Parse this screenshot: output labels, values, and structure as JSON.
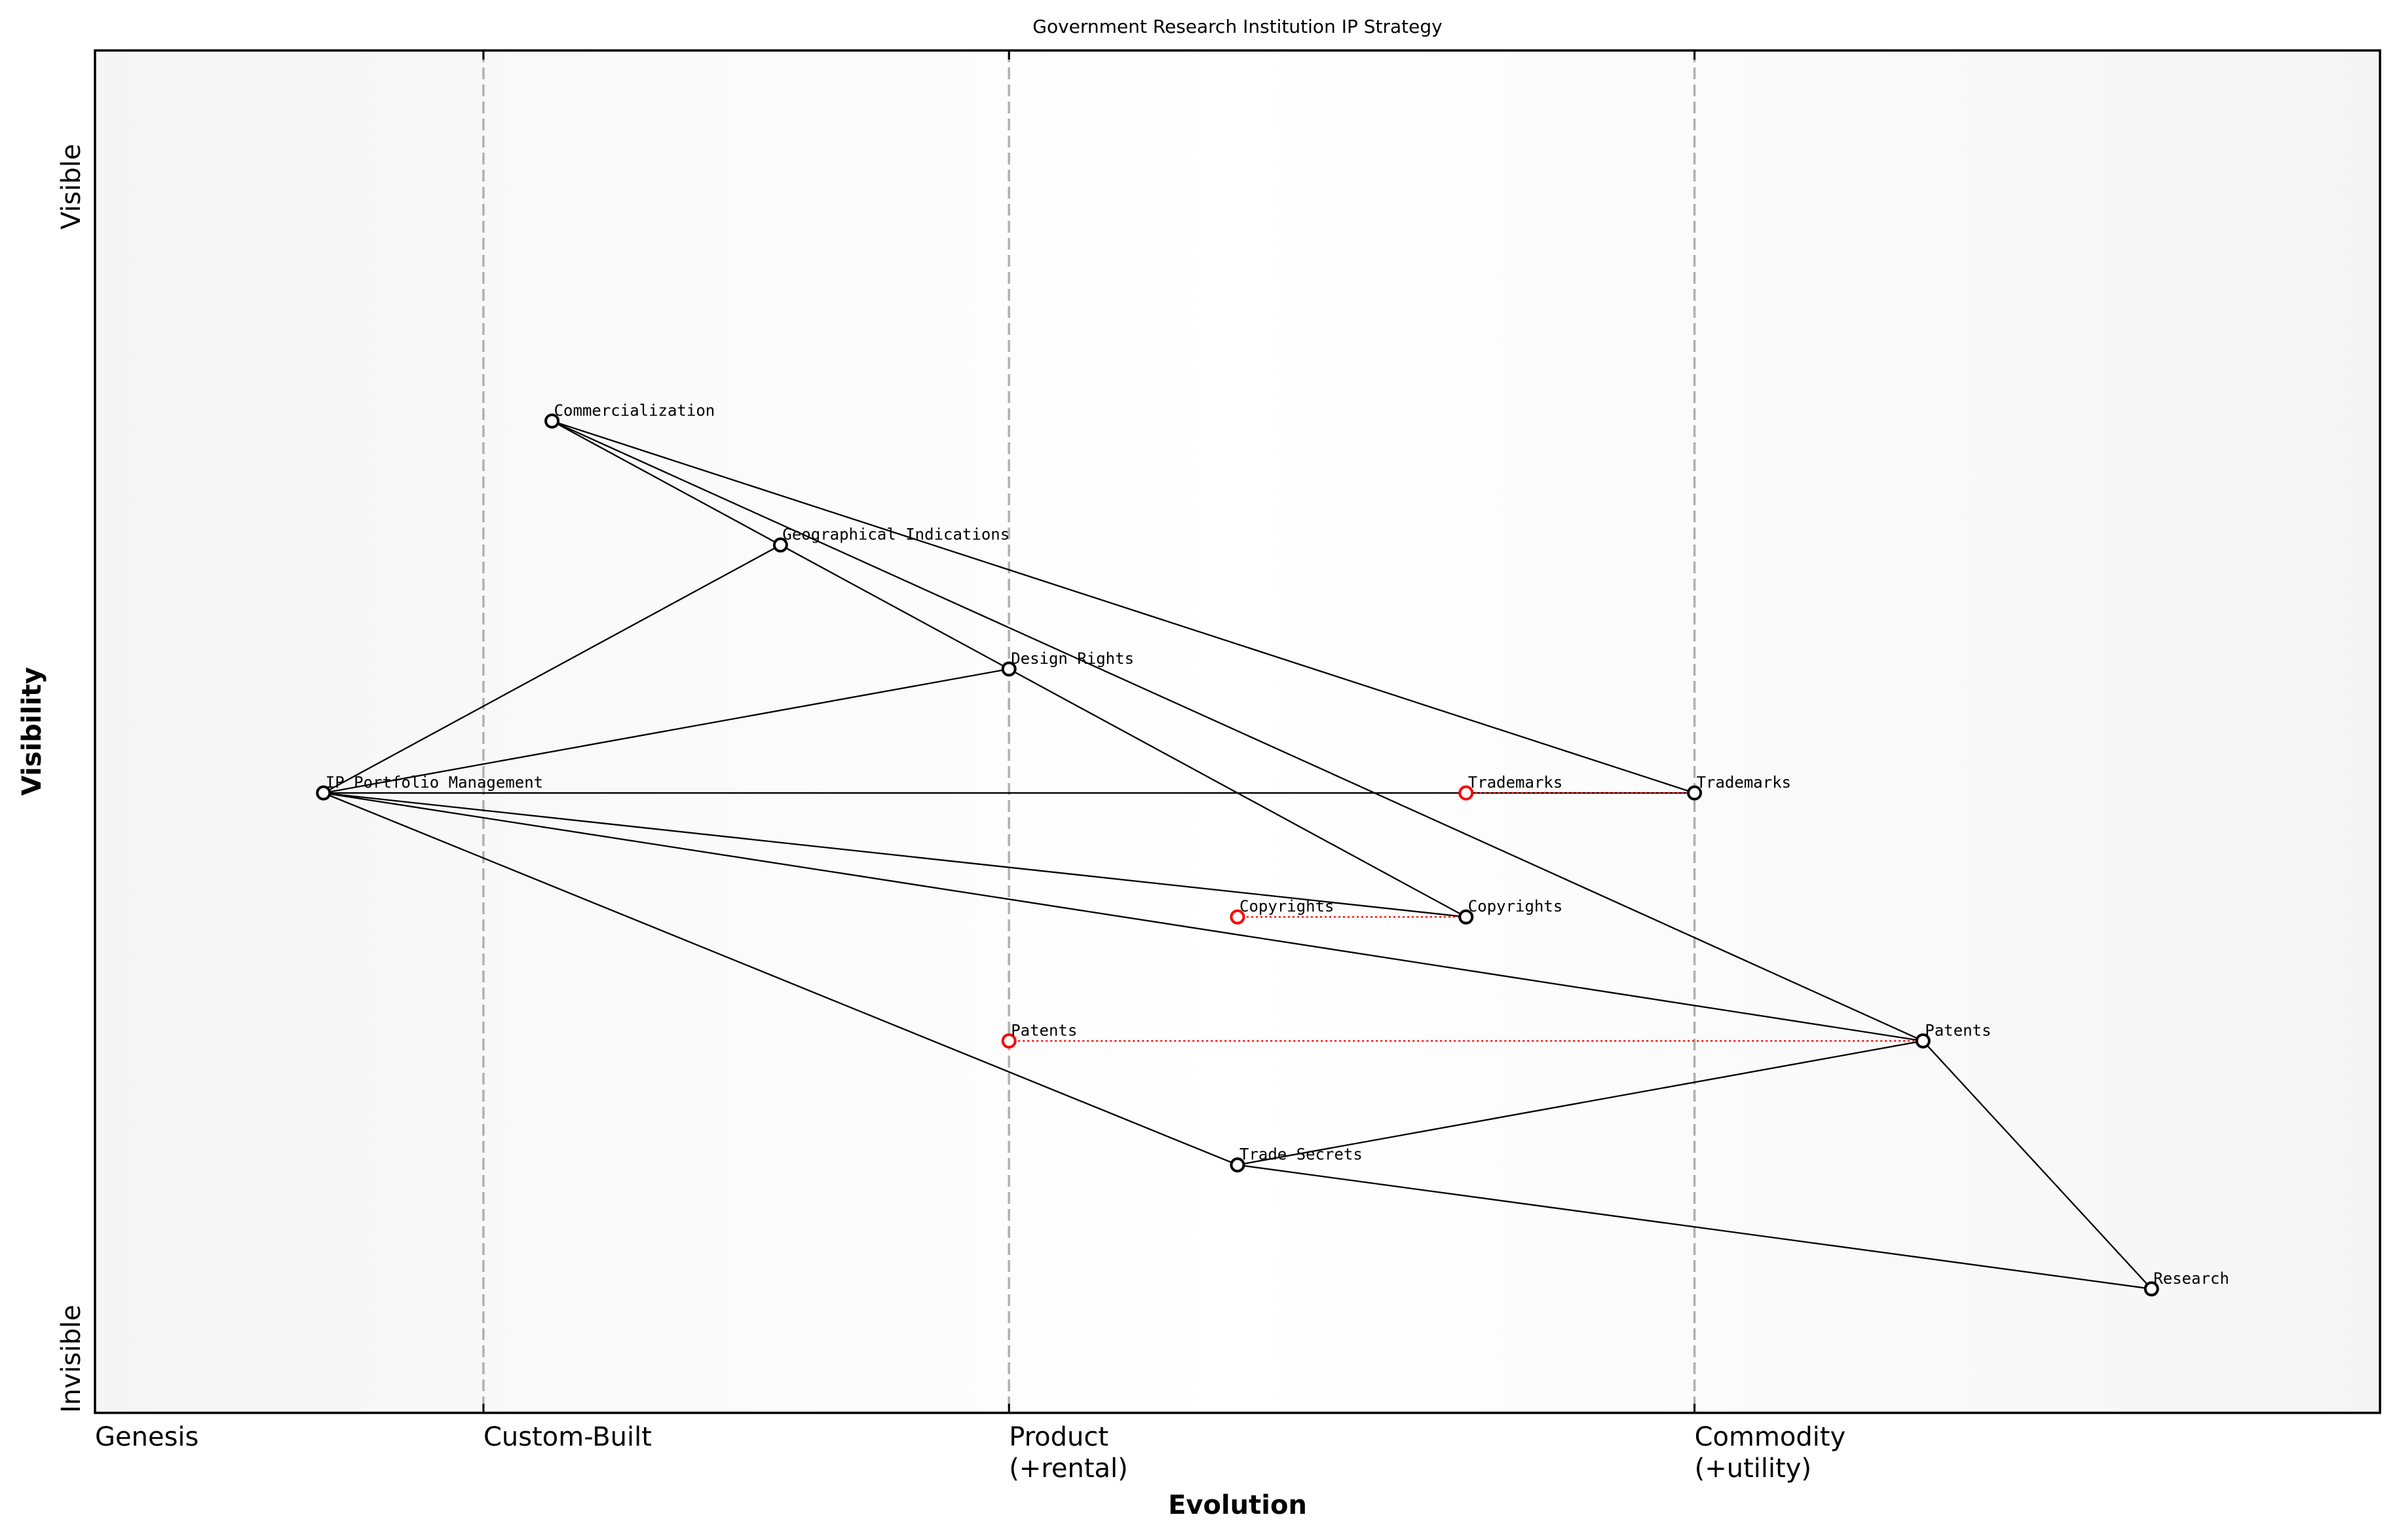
{
  "chart_data": {
    "type": "wardley-map",
    "title": "Government Research Institution IP Strategy",
    "xlabel": "Evolution",
    "ylabel": "Visibility",
    "x_stages": [
      {
        "label": "Genesis",
        "x": 0.0
      },
      {
        "label": "Custom-Built",
        "x": 0.17
      },
      {
        "label": "Product",
        "sub": "(+rental)",
        "x": 0.4
      },
      {
        "label": "Commodity",
        "sub": "(+utility)",
        "x": 0.7
      }
    ],
    "y_ticks": [
      {
        "label": "Visible",
        "y": 0.9
      },
      {
        "label": "Invisible",
        "y": 0.0
      }
    ],
    "xlim": [
      0,
      1
    ],
    "ylim": [
      0,
      1
    ],
    "components": [
      {
        "id": "ip",
        "label": "IP Portfolio Management",
        "x": 0.1,
        "y": 0.455
      },
      {
        "id": "comm",
        "label": "Commercialization",
        "x": 0.2,
        "y": 0.728
      },
      {
        "id": "geo",
        "label": "Geographical Indications",
        "x": 0.3,
        "y": 0.637
      },
      {
        "id": "design",
        "label": "Design Rights",
        "x": 0.4,
        "y": 0.546
      },
      {
        "id": "tm",
        "label": "Trademarks",
        "x": 0.7,
        "y": 0.455
      },
      {
        "id": "cr",
        "label": "Copyrights",
        "x": 0.6,
        "y": 0.364
      },
      {
        "id": "pat",
        "label": "Patents",
        "x": 0.8,
        "y": 0.273
      },
      {
        "id": "ts",
        "label": "Trade Secrets",
        "x": 0.5,
        "y": 0.182
      },
      {
        "id": "res",
        "label": "Research",
        "x": 0.9,
        "y": 0.091
      }
    ],
    "evolutions": [
      {
        "label": "Trademarks",
        "from_x": 0.6,
        "to_id": "tm",
        "y": 0.455
      },
      {
        "label": "Copyrights",
        "from_x": 0.5,
        "to_id": "cr",
        "y": 0.364
      },
      {
        "label": "Patents",
        "from_x": 0.4,
        "to_id": "pat",
        "y": 0.273
      }
    ],
    "links": [
      [
        "ip",
        "geo"
      ],
      [
        "ip",
        "design"
      ],
      [
        "ip",
        "tm"
      ],
      [
        "ip",
        "cr"
      ],
      [
        "ip",
        "pat"
      ],
      [
        "ip",
        "ts"
      ],
      [
        "comm",
        "geo"
      ],
      [
        "comm",
        "pat"
      ],
      [
        "comm",
        "tm"
      ],
      [
        "geo",
        "design"
      ],
      [
        "design",
        "cr"
      ],
      [
        "ts",
        "pat"
      ],
      [
        "ts",
        "res"
      ],
      [
        "pat",
        "res"
      ]
    ],
    "colors": {
      "line": "#000000",
      "evolution": "#ff0000",
      "stage_divider": "#b0b0b0",
      "bg_edge": "#f5f5f5",
      "bg_center": "#ffffff"
    }
  }
}
